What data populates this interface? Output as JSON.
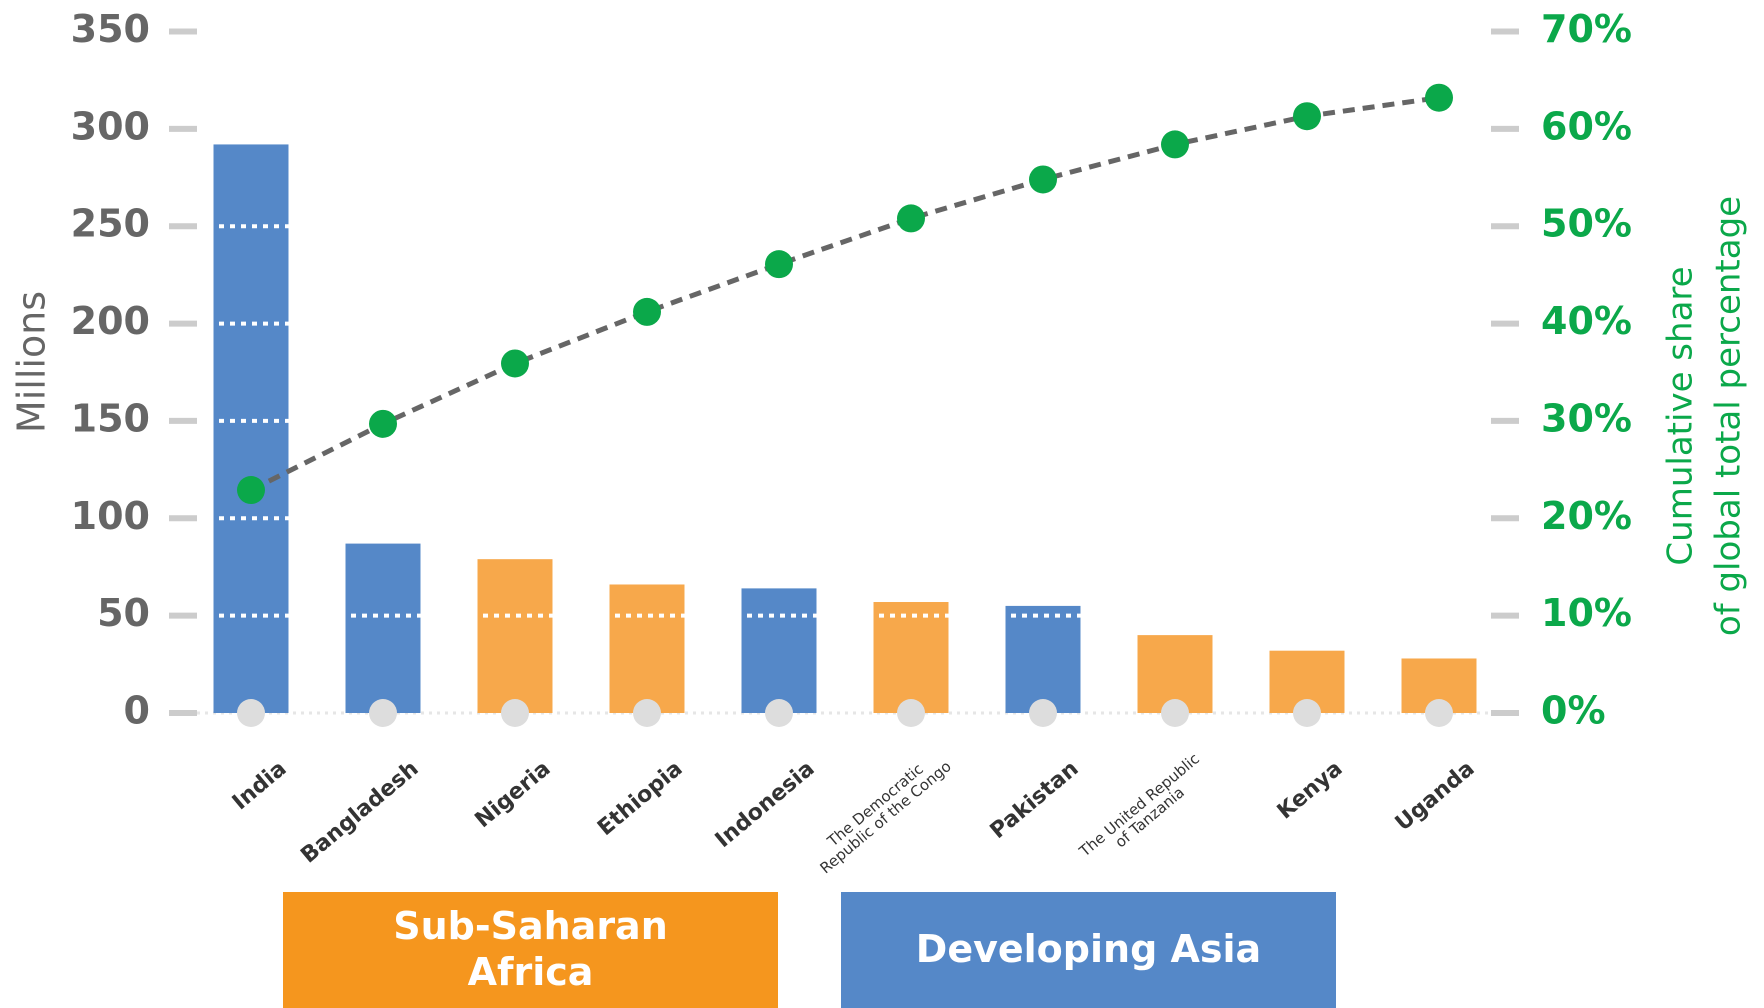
{
  "chart_data": {
    "type": "bar",
    "categories": [
      "India",
      "Bangladesh",
      "Nigeria",
      "Ethiopia",
      "Indonesia",
      "The Democratic Republic of the Congo",
      "Pakistan",
      "The United Republic of Tanzania",
      "Kenya",
      "Uganda"
    ],
    "ylabel": "Millions",
    "y2label": [
      "Cumulative share",
      "of global total percentage"
    ],
    "ylim": [
      0,
      350
    ],
    "yticks": [
      0,
      50,
      100,
      150,
      200,
      250,
      300,
      350
    ],
    "y2lim": [
      0,
      70
    ],
    "y2ticks": [
      {
        "value": 0,
        "label": "0%"
      },
      {
        "value": 10,
        "label": "10%"
      },
      {
        "value": 20,
        "label": "20%"
      },
      {
        "value": 30,
        "label": "30%"
      },
      {
        "value": 40,
        "label": "40%"
      },
      {
        "value": 50,
        "label": "50%"
      },
      {
        "value": 60,
        "label": "60%"
      },
      {
        "value": 70,
        "label": "70%"
      }
    ],
    "grid": true,
    "series": [
      {
        "type": "bar",
        "values": [
          292,
          87,
          79,
          66,
          64,
          57,
          55,
          40,
          32,
          28
        ],
        "colors": [
          "#5588c8",
          "#5588c8",
          "#f7a84b",
          "#f7a84b",
          "#5588c8",
          "#f7a84b",
          "#5588c8",
          "#f7a84b",
          "#f7a84b",
          "#f7a84b"
        ]
      },
      {
        "type": "line",
        "axis": "y2",
        "color": "#0ba84a",
        "line_color": "#666666",
        "values": [
          22.9,
          29.7,
          35.9,
          41.2,
          46.1,
          50.8,
          54.8,
          58.4,
          61.3,
          63.2
        ]
      }
    ],
    "legend": [
      {
        "name": "Sub-Saharan Africa",
        "color": "#f5961e"
      },
      {
        "name": "Developing Asia",
        "color": "#5588c8"
      }
    ]
  }
}
